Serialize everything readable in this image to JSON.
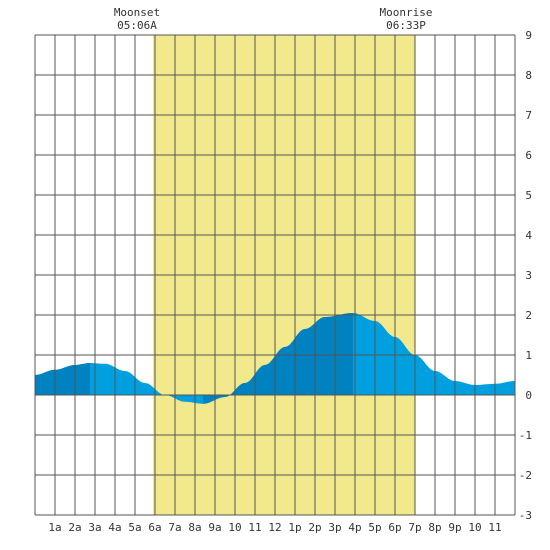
{
  "annotations": {
    "moonset": {
      "label": "Moonset",
      "time": "05:06A",
      "hour": 5.1
    },
    "moonrise": {
      "label": "Moonrise",
      "time": "06:33P",
      "hour": 18.55
    }
  },
  "chart_data": {
    "type": "area",
    "xlim": [
      0,
      24
    ],
    "ylim": [
      -3,
      9
    ],
    "x_tick_labels": [
      "1a",
      "2a",
      "3a",
      "4a",
      "5a",
      "6a",
      "7a",
      "8a",
      "9a",
      "10",
      "11",
      "12",
      "1p",
      "2p",
      "3p",
      "4p",
      "5p",
      "6p",
      "7p",
      "8p",
      "9p",
      "10",
      "11"
    ],
    "y_tick_labels": [
      "9",
      "8",
      "7",
      "6",
      "5",
      "4",
      "3",
      "2",
      "1",
      "0",
      "-1",
      "-2",
      "-3"
    ],
    "daylight": {
      "start": 5.9,
      "end": 19.0
    },
    "tide_points": [
      {
        "x": 0.0,
        "y": 0.5
      },
      {
        "x": 1.0,
        "y": 0.63
      },
      {
        "x": 2.0,
        "y": 0.75
      },
      {
        "x": 2.75,
        "y": 0.8
      },
      {
        "x": 3.5,
        "y": 0.78
      },
      {
        "x": 4.5,
        "y": 0.6
      },
      {
        "x": 5.5,
        "y": 0.3
      },
      {
        "x": 6.5,
        "y": 0.0
      },
      {
        "x": 7.5,
        "y": -0.17
      },
      {
        "x": 8.4,
        "y": -0.22
      },
      {
        "x": 9.5,
        "y": -0.05
      },
      {
        "x": 10.5,
        "y": 0.3
      },
      {
        "x": 11.5,
        "y": 0.75
      },
      {
        "x": 12.5,
        "y": 1.2
      },
      {
        "x": 13.5,
        "y": 1.65
      },
      {
        "x": 14.5,
        "y": 1.95
      },
      {
        "x": 15.9,
        "y": 2.05
      },
      {
        "x": 17.0,
        "y": 1.85
      },
      {
        "x": 18.0,
        "y": 1.45
      },
      {
        "x": 19.0,
        "y": 1.0
      },
      {
        "x": 20.0,
        "y": 0.6
      },
      {
        "x": 21.0,
        "y": 0.35
      },
      {
        "x": 22.0,
        "y": 0.25
      },
      {
        "x": 23.0,
        "y": 0.28
      },
      {
        "x": 24.0,
        "y": 0.35
      }
    ],
    "rising_segments": [
      [
        0.0,
        2.75
      ],
      [
        8.4,
        15.9
      ]
    ],
    "grid": true,
    "colors": {
      "daylight": "#f2e98c",
      "tide_falling": "#00a0e0",
      "tide_rising": "#0081c0",
      "grid": "#555555",
      "background": "#ffffff"
    }
  }
}
